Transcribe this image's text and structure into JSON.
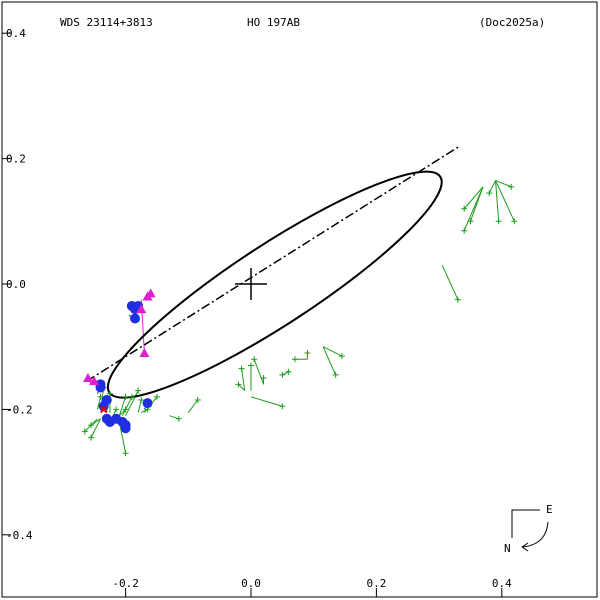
{
  "header": {
    "wds_id": "WDS 23114+3813",
    "pair": "HO  197AB",
    "reference": "(Doc2025a)"
  },
  "compass": {
    "east_label": "E",
    "north_label": "N"
  },
  "colors": {
    "orbit": "#000000",
    "green": "#1a9e1a",
    "blue": "#1f2fe0",
    "magenta": "#e020d0",
    "red": "#e00000"
  },
  "chart_data": {
    "type": "scatter",
    "title": "",
    "xlabel": "",
    "ylabel": "",
    "xlim": [
      -0.4,
      0.55
    ],
    "ylim": [
      -0.5,
      0.42
    ],
    "x_ticks": [
      {
        "value": -0.2,
        "label": "-0.2"
      },
      {
        "value": 0.0,
        "label": "0.0"
      },
      {
        "value": 0.2,
        "label": "0.2"
      },
      {
        "value": 0.4,
        "label": "0.4"
      }
    ],
    "y_ticks": [
      {
        "value": 0.4,
        "label": "0.4"
      },
      {
        "value": 0.2,
        "label": "0.2"
      },
      {
        "value": 0.0,
        "label": "0.0"
      },
      {
        "value": -0.2,
        "label": "-0.2"
      },
      {
        "value": -0.4,
        "label": "-0.4"
      }
    ],
    "orbit": {
      "center": [
        0.038,
        -0.001
      ],
      "semi_major": 0.315,
      "semi_minor": 0.064,
      "angle_deg": 33.1
    },
    "line_of_nodes": [
      [
        -0.262,
        -0.155
      ],
      [
        0.333,
        0.22
      ]
    ],
    "primary": [
      0.0,
      0.0
    ],
    "green_obs": [
      {
        "obs": [
          0.33,
          -0.025
        ],
        "orbit": [
          0.305,
          0.03
        ]
      },
      {
        "obs": [
          0.415,
          0.155
        ],
        "orbit": [
          0.39,
          0.165
        ]
      },
      {
        "obs": [
          0.38,
          0.145
        ],
        "orbit": [
          0.39,
          0.165
        ]
      },
      {
        "obs": [
          0.42,
          0.1
        ],
        "orbit": [
          0.39,
          0.165
        ]
      },
      {
        "obs": [
          0.395,
          0.1
        ],
        "orbit": [
          0.39,
          0.165
        ]
      },
      {
        "obs": [
          0.34,
          0.12
        ],
        "orbit": [
          0.37,
          0.155
        ]
      },
      {
        "obs": [
          0.35,
          0.1
        ],
        "orbit": [
          0.37,
          0.155
        ]
      },
      {
        "obs": [
          0.34,
          0.085
        ],
        "orbit": [
          0.37,
          0.155
        ]
      },
      {
        "obs": [
          0.145,
          -0.115
        ],
        "orbit": [
          0.115,
          -0.1
        ]
      },
      {
        "obs": [
          0.135,
          -0.145
        ],
        "orbit": [
          0.115,
          -0.1
        ]
      },
      {
        "obs": [
          0.09,
          -0.11
        ],
        "orbit": [
          0.09,
          -0.12
        ]
      },
      {
        "obs": [
          0.07,
          -0.12
        ],
        "orbit": [
          0.09,
          -0.12
        ]
      },
      {
        "obs": [
          0.06,
          -0.14
        ],
        "orbit": [
          0.06,
          -0.14
        ]
      },
      {
        "obs": [
          0.05,
          -0.145
        ],
        "orbit": [
          0.06,
          -0.14
        ]
      },
      {
        "obs": [
          0.005,
          -0.12
        ],
        "orbit": [
          0.02,
          -0.16
        ]
      },
      {
        "obs": [
          0.02,
          -0.15
        ],
        "orbit": [
          0.02,
          -0.16
        ]
      },
      {
        "obs": [
          0.05,
          -0.195
        ],
        "orbit": [
          0.0,
          -0.18
        ]
      },
      {
        "obs": [
          0.0,
          -0.13
        ],
        "orbit": [
          0.0,
          -0.17
        ]
      },
      {
        "obs": [
          -0.015,
          -0.135
        ],
        "orbit": [
          -0.01,
          -0.17
        ]
      },
      {
        "obs": [
          -0.02,
          -0.16
        ],
        "orbit": [
          -0.01,
          -0.17
        ]
      },
      {
        "obs": [
          -0.085,
          -0.185
        ],
        "orbit": [
          -0.1,
          -0.205
        ]
      },
      {
        "obs": [
          -0.115,
          -0.215
        ],
        "orbit": [
          -0.13,
          -0.21
        ]
      },
      {
        "obs": [
          -0.15,
          -0.18
        ],
        "orbit": [
          -0.17,
          -0.205
        ]
      },
      {
        "obs": [
          -0.165,
          -0.2
        ],
        "orbit": [
          -0.175,
          -0.205
        ]
      },
      {
        "obs": [
          -0.175,
          -0.185
        ],
        "orbit": [
          -0.18,
          -0.205
        ]
      },
      {
        "obs": [
          -0.18,
          -0.17
        ],
        "orbit": [
          -0.2,
          -0.21
        ]
      },
      {
        "obs": [
          -0.19,
          -0.18
        ],
        "orbit": [
          -0.205,
          -0.21
        ]
      },
      {
        "obs": [
          -0.2,
          -0.18
        ],
        "orbit": [
          -0.21,
          -0.21
        ]
      },
      {
        "obs": [
          -0.2,
          -0.2
        ],
        "orbit": [
          -0.21,
          -0.21
        ]
      },
      {
        "obs": [
          -0.215,
          -0.2
        ],
        "orbit": [
          -0.22,
          -0.21
        ]
      },
      {
        "obs": [
          -0.225,
          -0.175
        ],
        "orbit": [
          -0.225,
          -0.205
        ]
      },
      {
        "obs": [
          -0.23,
          -0.19
        ],
        "orbit": [
          -0.23,
          -0.205
        ]
      },
      {
        "obs": [
          -0.235,
          -0.165
        ],
        "orbit": [
          -0.24,
          -0.2
        ]
      },
      {
        "obs": [
          -0.24,
          -0.18
        ],
        "orbit": [
          -0.245,
          -0.2
        ]
      },
      {
        "obs": [
          -0.255,
          -0.225
        ],
        "orbit": [
          -0.24,
          -0.215
        ]
      },
      {
        "obs": [
          -0.265,
          -0.235
        ],
        "orbit": [
          -0.245,
          -0.215
        ]
      },
      {
        "obs": [
          -0.255,
          -0.245
        ],
        "orbit": [
          -0.24,
          -0.215
        ]
      },
      {
        "obs": [
          -0.2,
          -0.27
        ],
        "orbit": [
          -0.21,
          -0.22
        ]
      }
    ],
    "blue_obs": [
      {
        "obs": [
          -0.19,
          -0.035
        ],
        "orbit": [
          -0.19,
          -0.045
        ]
      },
      {
        "obs": [
          -0.185,
          -0.04
        ],
        "orbit": [
          -0.19,
          -0.045
        ]
      },
      {
        "obs": [
          -0.18,
          -0.035
        ],
        "orbit": [
          -0.185,
          -0.04
        ]
      },
      {
        "obs": [
          -0.185,
          -0.055
        ],
        "orbit": [
          -0.195,
          -0.05
        ]
      },
      {
        "obs": [
          -0.24,
          -0.16
        ],
        "orbit": [
          -0.245,
          -0.17
        ]
      },
      {
        "obs": [
          -0.24,
          -0.165
        ],
        "orbit": [
          -0.245,
          -0.175
        ]
      },
      {
        "obs": [
          -0.23,
          -0.185
        ],
        "orbit": [
          -0.235,
          -0.195
        ]
      },
      {
        "obs": [
          -0.235,
          -0.195
        ],
        "orbit": [
          -0.24,
          -0.2
        ]
      },
      {
        "obs": [
          -0.165,
          -0.19
        ],
        "orbit": [
          -0.17,
          -0.2
        ]
      },
      {
        "obs": [
          -0.23,
          -0.215
        ],
        "orbit": [
          -0.23,
          -0.21
        ]
      },
      {
        "obs": [
          -0.225,
          -0.22
        ],
        "orbit": [
          -0.23,
          -0.21
        ]
      },
      {
        "obs": [
          -0.215,
          -0.215
        ],
        "orbit": [
          -0.22,
          -0.21
        ]
      },
      {
        "obs": [
          -0.205,
          -0.22
        ],
        "orbit": [
          -0.215,
          -0.21
        ]
      },
      {
        "obs": [
          -0.2,
          -0.225
        ],
        "orbit": [
          -0.21,
          -0.215
        ]
      },
      {
        "obs": [
          -0.2,
          -0.23
        ],
        "orbit": [
          -0.21,
          -0.215
        ]
      }
    ],
    "magenta_obs": [
      {
        "obs": [
          -0.16,
          -0.015
        ],
        "orbit": [
          -0.16,
          -0.02
        ]
      },
      {
        "obs": [
          -0.165,
          -0.02
        ],
        "orbit": [
          -0.165,
          -0.025
        ]
      },
      {
        "obs": [
          -0.175,
          -0.04
        ],
        "orbit": [
          -0.18,
          -0.04
        ]
      },
      {
        "obs": [
          -0.17,
          -0.11
        ],
        "orbit": [
          -0.175,
          -0.025
        ]
      },
      {
        "obs": [
          -0.26,
          -0.15
        ],
        "orbit": [
          -0.255,
          -0.16
        ]
      },
      {
        "obs": [
          -0.25,
          -0.155
        ],
        "orbit": [
          -0.255,
          -0.16
        ]
      }
    ],
    "red_obs": [
      {
        "obs": [
          -0.235,
          -0.2
        ],
        "orbit": [
          -0.235,
          -0.2
        ]
      }
    ]
  }
}
